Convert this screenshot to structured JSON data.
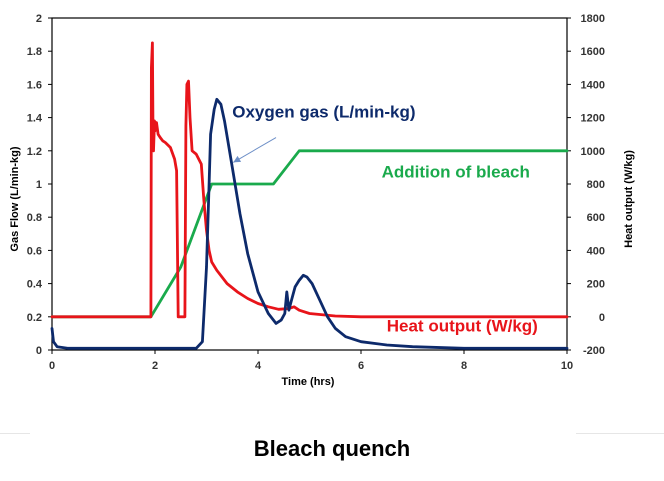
{
  "chart_data": {
    "type": "line",
    "xlabel": "Time (hrs)",
    "ylabel": "Gas Flow (L/min-kg)",
    "y2label": "Heat output (W/kg)",
    "xlim": [
      0,
      10
    ],
    "ylim": [
      0,
      2
    ],
    "y2lim": [
      -200,
      1800
    ],
    "x_ticks": [
      0,
      2,
      4,
      6,
      8,
      10
    ],
    "y_ticks": [
      0,
      0.2,
      0.4,
      0.6,
      0.8,
      1,
      1.2,
      1.4,
      1.6,
      1.8,
      2
    ],
    "y2_ticks": [
      -200,
      0,
      200,
      400,
      600,
      800,
      1000,
      1200,
      1400,
      1600,
      1800
    ],
    "grid": false,
    "legend": "none",
    "series": [
      {
        "name": "Oxygen gas (L/min-kg)",
        "axis": "left",
        "color": "#0d2a6b",
        "x": [
          0,
          0.03,
          0.1,
          0.3,
          1,
          2,
          2.8,
          2.92,
          3.0,
          3.05,
          3.08,
          3.15,
          3.2,
          3.28,
          3.35,
          3.5,
          3.65,
          3.8,
          4.0,
          4.2,
          4.35,
          4.45,
          4.52,
          4.56,
          4.6,
          4.65,
          4.72,
          4.8,
          4.88,
          4.95,
          5.05,
          5.2,
          5.35,
          5.5,
          5.7,
          6.0,
          6.5,
          7,
          8,
          10
        ],
        "y": [
          0.13,
          0.05,
          0.02,
          0.01,
          0.01,
          0.01,
          0.01,
          0.05,
          0.5,
          1.0,
          1.3,
          1.45,
          1.51,
          1.48,
          1.38,
          1.1,
          0.82,
          0.58,
          0.35,
          0.22,
          0.16,
          0.18,
          0.22,
          0.35,
          0.24,
          0.3,
          0.38,
          0.42,
          0.45,
          0.44,
          0.4,
          0.3,
          0.2,
          0.13,
          0.08,
          0.05,
          0.03,
          0.02,
          0.01,
          0.01
        ]
      },
      {
        "name": "Heat output (W/kg)",
        "axis": "right",
        "color": "#e8141a",
        "x": [
          0,
          1.92,
          1.93,
          1.95,
          1.96,
          1.97,
          1.99,
          2.0,
          2.03,
          2.06,
          2.1,
          2.15,
          2.2,
          2.3,
          2.38,
          2.42,
          2.45,
          2.5,
          2.58,
          2.6,
          2.62,
          2.65,
          2.68,
          2.72,
          2.8,
          2.9,
          2.95,
          3.0,
          3.05,
          3.1,
          3.2,
          3.4,
          3.6,
          3.8,
          4.0,
          4.2,
          4.4,
          4.6,
          4.7,
          4.8,
          5.0,
          5.5,
          6,
          10
        ],
        "y": [
          0,
          0,
          1500,
          1650,
          1200,
          1000,
          1180,
          1120,
          1170,
          1100,
          1080,
          1060,
          1050,
          1020,
          950,
          880,
          0,
          0,
          0,
          1150,
          1400,
          1420,
          1200,
          1000,
          980,
          920,
          700,
          520,
          400,
          330,
          280,
          200,
          150,
          110,
          80,
          60,
          45,
          50,
          60,
          40,
          20,
          5,
          0,
          0
        ]
      },
      {
        "name": "Addition of bleach",
        "axis": "left",
        "color": "#1aaa4c",
        "x": [
          0,
          1.92,
          2.5,
          3.1,
          3.15,
          4.3,
          4.8,
          10
        ],
        "y": [
          0.2,
          0.2,
          0.5,
          1.0,
          1.0,
          1.0,
          1.2,
          1.2
        ]
      }
    ],
    "annotations": [
      {
        "text": "Oxygen gas (L/min-kg)",
        "x": 3.5,
        "y": 1.4,
        "color": "#0d2a6b"
      },
      {
        "text": "Addition of bleach",
        "x": 6.4,
        "y": 1.04,
        "color": "#1aaa4c"
      },
      {
        "text": "Heat output (W/kg)",
        "x": 6.5,
        "y": 0.11,
        "color": "#e8141a"
      }
    ],
    "arrow": {
      "from": {
        "x": 4.35,
        "y": 1.28
      },
      "to": {
        "x": 3.52,
        "y": 1.13
      },
      "color": "#6d8fc7"
    }
  },
  "caption": "Bleach quench"
}
